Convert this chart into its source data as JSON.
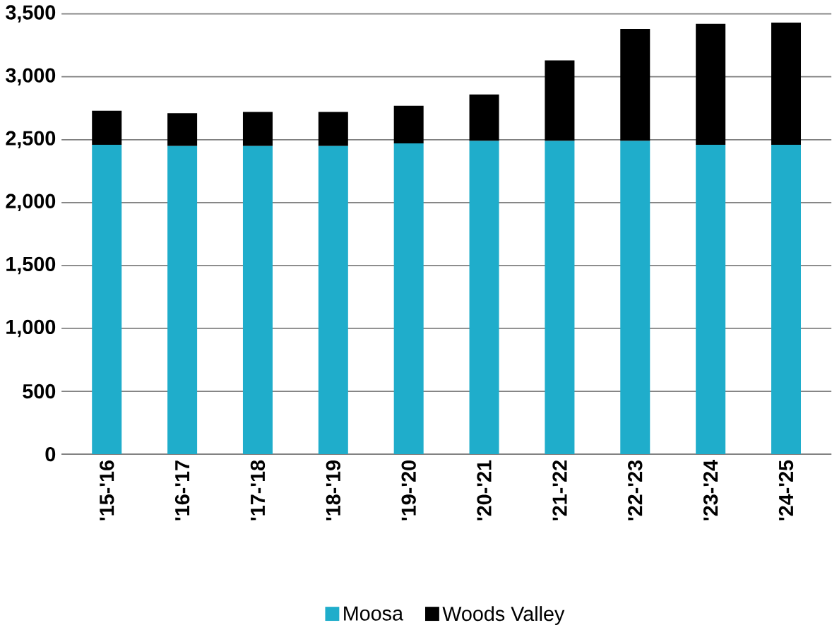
{
  "chart_data": {
    "type": "bar",
    "stacked": true,
    "categories": [
      "'15-'16",
      "'16-'17",
      "'17-'18",
      "'18-'19",
      "'19-'20",
      "'20-'21",
      "'21-'22",
      "'22-'23",
      "'23-'24",
      "'24-'25"
    ],
    "series": [
      {
        "name": "Moosa",
        "color": "#1fadcb",
        "values": [
          2460,
          2450,
          2450,
          2450,
          2470,
          2490,
          2490,
          2490,
          2460,
          2460
        ]
      },
      {
        "name": "Woods Valley",
        "color": "#000000",
        "values": [
          270,
          260,
          270,
          270,
          300,
          370,
          640,
          890,
          960,
          970
        ]
      }
    ],
    "ylim": [
      0,
      3500
    ],
    "yticks": [
      0,
      500,
      {
        "value": 1000,
        "label": "1,000"
      },
      {
        "value": 1500,
        "label": "1,500"
      },
      {
        "value": 2000,
        "label": "2,000"
      },
      {
        "value": 2500,
        "label": "2,500"
      },
      {
        "value": 3000,
        "label": "3,000"
      },
      {
        "value": 3500,
        "label": "3,500"
      }
    ],
    "grid": "y",
    "legend": "bottom"
  }
}
